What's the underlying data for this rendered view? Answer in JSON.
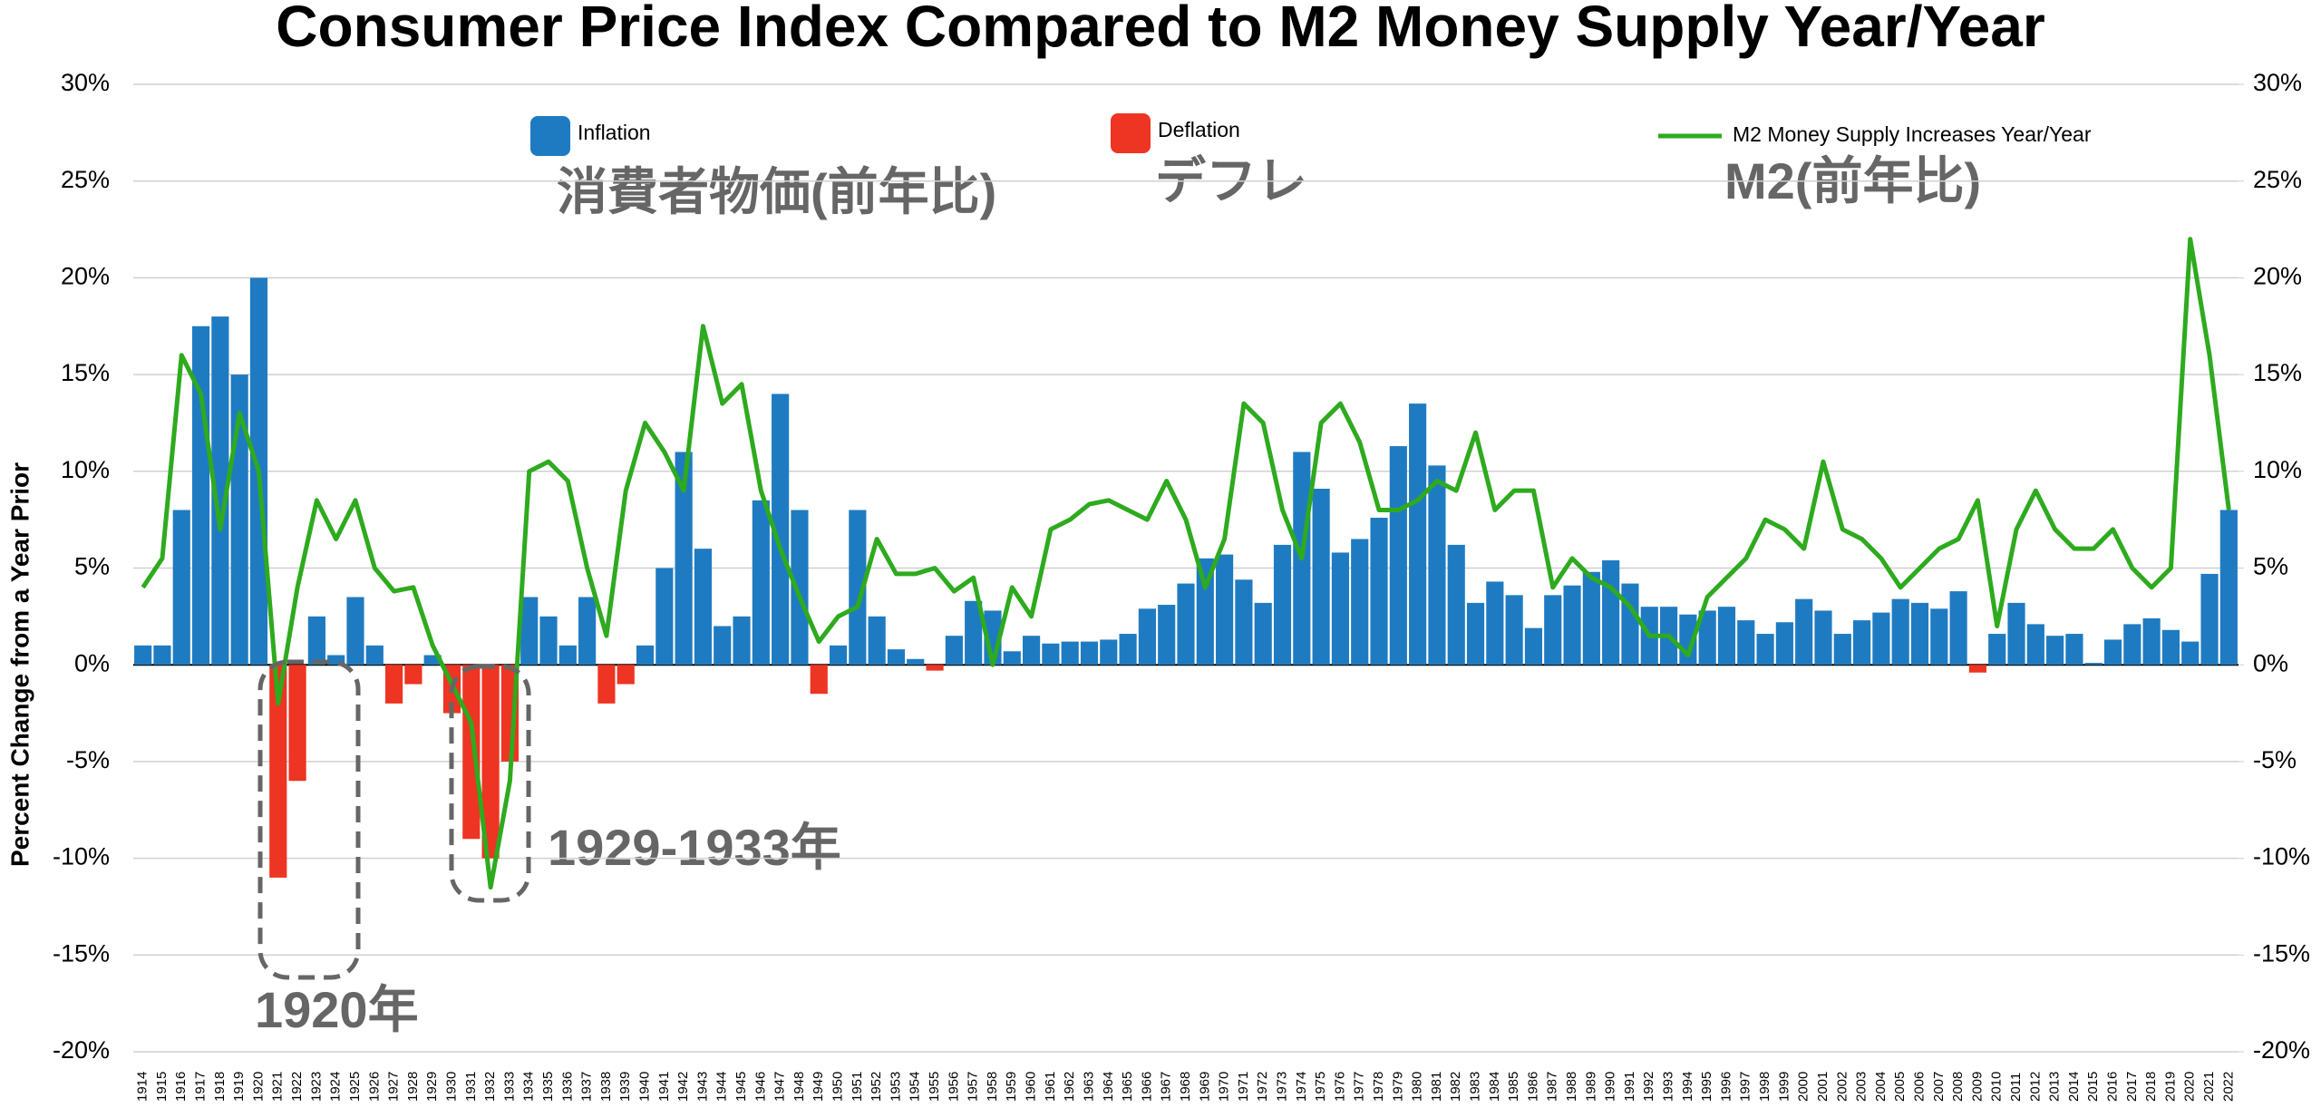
{
  "chart_data": {
    "type": "bar",
    "title": "Consumer Price Index Compared to M2 Money Supply Year/Year",
    "y_label": "Percent Change from a Year Prior",
    "annotations": [
      "消費者物価(前年比)",
      "デフレ",
      "M2(前年比)",
      "1929-1933年",
      "1920年"
    ],
    "categories": [
      "1914",
      "1915",
      "1916",
      "1917",
      "1918",
      "1919",
      "1920",
      "1921",
      "1922",
      "1923",
      "1924",
      "1925",
      "1926",
      "1927",
      "1928",
      "1929",
      "1930",
      "1931",
      "1932",
      "1933",
      "1934",
      "1935",
      "1936",
      "1937",
      "1938",
      "1939",
      "1940",
      "1941",
      "1942",
      "1943",
      "1944",
      "1945",
      "1946",
      "1947",
      "1948",
      "1949",
      "1950",
      "1951",
      "1952",
      "1953",
      "1954",
      "1955",
      "1956",
      "1957",
      "1958",
      "1959",
      "1960",
      "1961",
      "1962",
      "1963",
      "1964",
      "1965",
      "1966",
      "1967",
      "1968",
      "1969",
      "1970",
      "1971",
      "1972",
      "1973",
      "1974",
      "1975",
      "1976",
      "1977",
      "1978",
      "1979",
      "1980",
      "1981",
      "1982",
      "1983",
      "1984",
      "1985",
      "1986",
      "1987",
      "1988",
      "1989",
      "1990",
      "1991",
      "1992",
      "1993",
      "1994",
      "1995",
      "1996",
      "1997",
      "1998",
      "1999",
      "2000",
      "2001",
      "2002",
      "2003",
      "2004",
      "2005",
      "2006",
      "2007",
      "2008",
      "2009",
      "2010",
      "2011",
      "2012",
      "2013",
      "2014",
      "2015",
      "2016",
      "2017",
      "2018",
      "2019",
      "2020",
      "2021",
      "2022"
    ],
    "series": [
      {
        "name": "Inflation",
        "color": "#1f7bc1",
        "values": [
          1,
          1,
          8,
          17.5,
          18,
          15,
          20,
          null,
          null,
          2.5,
          0.5,
          3.5,
          1,
          null,
          null,
          0.5,
          null,
          null,
          null,
          null,
          3.5,
          2.5,
          1,
          3.5,
          null,
          null,
          1,
          5,
          11,
          6,
          2,
          2.5,
          8.5,
          14,
          8,
          null,
          1,
          8,
          2.5,
          0.8,
          0.3,
          null,
          1.5,
          3.3,
          2.8,
          0.7,
          1.5,
          1.1,
          1.2,
          1.2,
          1.3,
          1.6,
          2.9,
          3.1,
          4.2,
          5.5,
          5.7,
          4.4,
          3.2,
          6.2,
          11,
          9.1,
          5.8,
          6.5,
          7.6,
          11.3,
          13.5,
          10.3,
          6.2,
          3.2,
          4.3,
          3.6,
          1.9,
          3.6,
          4.1,
          4.8,
          5.4,
          4.2,
          3,
          3,
          2.6,
          2.8,
          3,
          2.3,
          1.6,
          2.2,
          3.4,
          2.8,
          1.6,
          2.3,
          2.7,
          3.4,
          3.2,
          2.9,
          3.8,
          null,
          1.6,
          3.2,
          2.1,
          1.5,
          1.6,
          0.1,
          1.3,
          2.1,
          2.4,
          1.8,
          1.2,
          4.7,
          8
        ]
      },
      {
        "name": "Deflation",
        "color": "#ee3422",
        "values": [
          null,
          null,
          null,
          null,
          null,
          null,
          null,
          -11,
          -6,
          null,
          null,
          null,
          null,
          -2,
          -1,
          null,
          -2.5,
          -9,
          -10,
          -5,
          null,
          null,
          null,
          null,
          -2,
          -1,
          null,
          null,
          null,
          null,
          null,
          null,
          null,
          null,
          null,
          -1.5,
          null,
          null,
          null,
          null,
          null,
          -0.3,
          null,
          null,
          null,
          null,
          null,
          null,
          null,
          null,
          null,
          null,
          null,
          null,
          null,
          null,
          null,
          null,
          null,
          null,
          null,
          null,
          null,
          null,
          null,
          null,
          null,
          null,
          null,
          null,
          null,
          null,
          null,
          null,
          null,
          null,
          null,
          null,
          null,
          null,
          null,
          null,
          null,
          null,
          null,
          null,
          null,
          null,
          null,
          null,
          null,
          null,
          null,
          null,
          null,
          -0.4,
          null,
          null,
          null,
          null,
          null,
          null,
          null,
          null,
          null,
          null,
          null,
          null,
          null
        ]
      },
      {
        "name": "M2 Money Supply Increases Year/Year",
        "color": "#2eaa1e",
        "type": "line",
        "values": [
          4,
          5.5,
          16,
          14,
          7,
          13,
          10,
          -2,
          4,
          8.5,
          6.5,
          8.5,
          5,
          3.8,
          4,
          1,
          -1,
          -3,
          -11.5,
          -6,
          10,
          10.5,
          9.5,
          5,
          1.5,
          9,
          12.5,
          11,
          9,
          17.5,
          13.5,
          14.5,
          9,
          6,
          3.5,
          1.2,
          2.5,
          3,
          6.5,
          4.7,
          4.7,
          5,
          3.8,
          4.5,
          0,
          4,
          2.5,
          7,
          7.5,
          8.3,
          8.5,
          8,
          7.5,
          9.5,
          7.5,
          4,
          6.5,
          13.5,
          12.5,
          8,
          5.5,
          12.5,
          13.5,
          11.5,
          8,
          8,
          8.5,
          9.5,
          9,
          12,
          8,
          9,
          9,
          4,
          5.5,
          4.5,
          4,
          3,
          1.5,
          1.5,
          0.5,
          3.5,
          4.5,
          5.5,
          7.5,
          7,
          6,
          10.5,
          7,
          6.5,
          5.5,
          4,
          5,
          6,
          6.5,
          8.5,
          2,
          7,
          9,
          7,
          6,
          6,
          7,
          5,
          4,
          5,
          22,
          16,
          8
        ]
      }
    ],
    "ylim": [
      -20,
      30
    ],
    "yticks": [
      {
        "value": -20,
        "label": "-20%"
      },
      {
        "value": -15,
        "label": "-15%"
      },
      {
        "value": -10,
        "label": "-10%"
      },
      {
        "value": -5,
        "label": "-5%"
      },
      {
        "value": 0,
        "label": "0%"
      },
      {
        "value": 5,
        "label": "5%"
      },
      {
        "value": 10,
        "label": "10%"
      },
      {
        "value": 15,
        "label": "15%"
      },
      {
        "value": 20,
        "label": "20%"
      },
      {
        "value": 25,
        "label": "25%"
      },
      {
        "value": 30,
        "label": "30%"
      }
    ],
    "y2lim": [
      -20,
      30
    ],
    "y2ticks": [
      {
        "value": -20,
        "label": "-20%"
      },
      {
        "value": -15,
        "label": "-15%"
      },
      {
        "value": -10,
        "label": "-10%"
      },
      {
        "value": -5,
        "label": "-5%"
      },
      {
        "value": 0,
        "label": "0%"
      },
      {
        "value": 5,
        "label": "5%"
      },
      {
        "value": 10,
        "label": "10%"
      },
      {
        "value": 15,
        "label": "15%"
      },
      {
        "value": 20,
        "label": "20%"
      },
      {
        "value": 25,
        "label": "25%"
      },
      {
        "value": 30,
        "label": "30%"
      }
    ],
    "grid": true
  }
}
